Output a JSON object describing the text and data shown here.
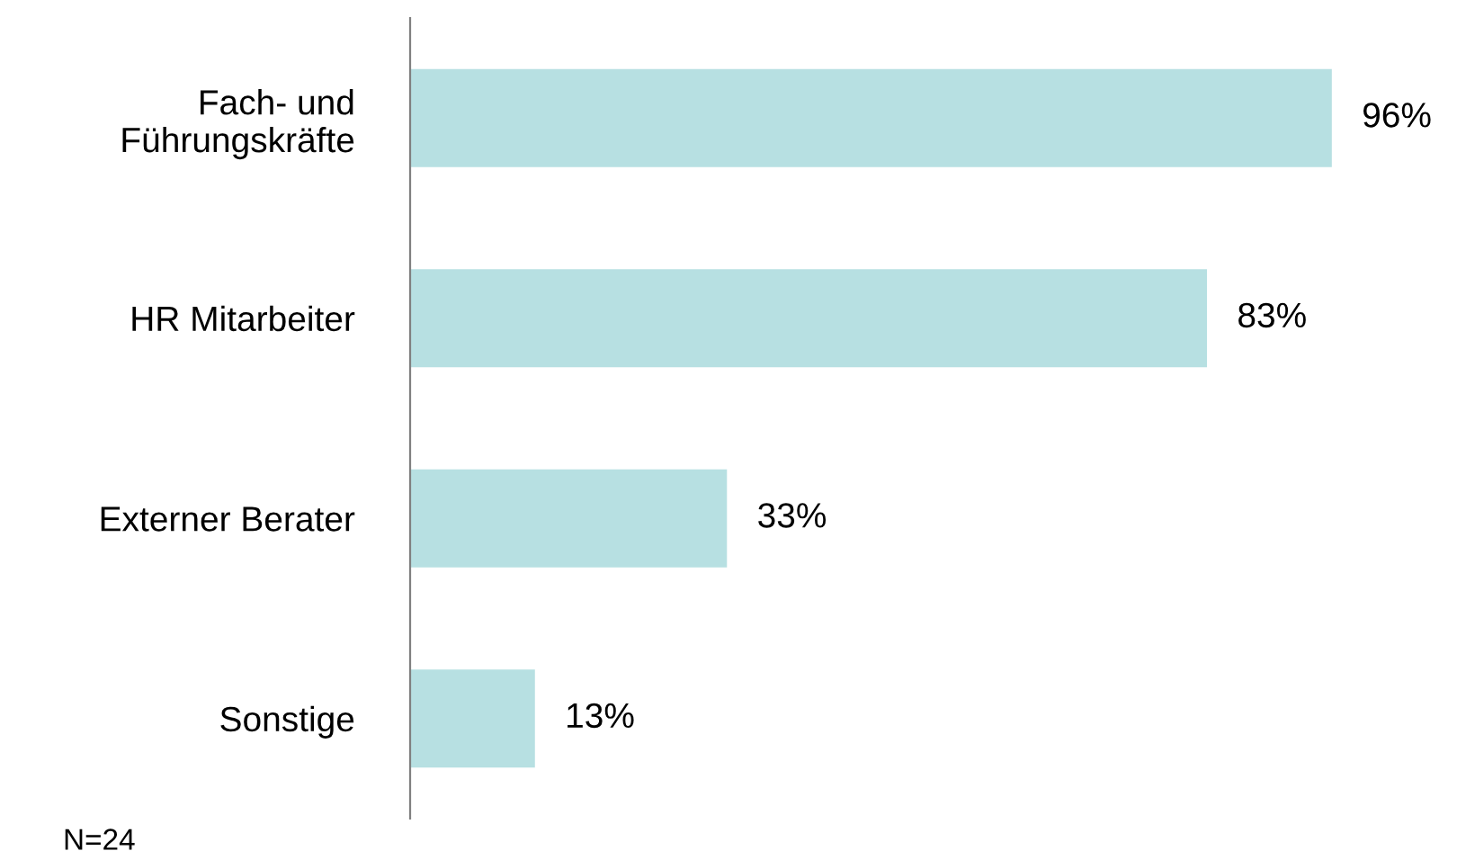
{
  "chart_data": {
    "type": "bar",
    "orientation": "horizontal",
    "categories": [
      "Fach- und\nFührungskräfte",
      "HR Mitarbeiter",
      "Externer Berater",
      "Sonstige"
    ],
    "values": [
      96,
      83,
      33,
      13
    ],
    "value_labels": [
      "96%",
      "83%",
      "33%",
      "13%"
    ],
    "color": "#b7e0e2",
    "tick_labels": "y",
    "grid": false,
    "legend": false,
    "annotations": [
      "N=24"
    ]
  }
}
